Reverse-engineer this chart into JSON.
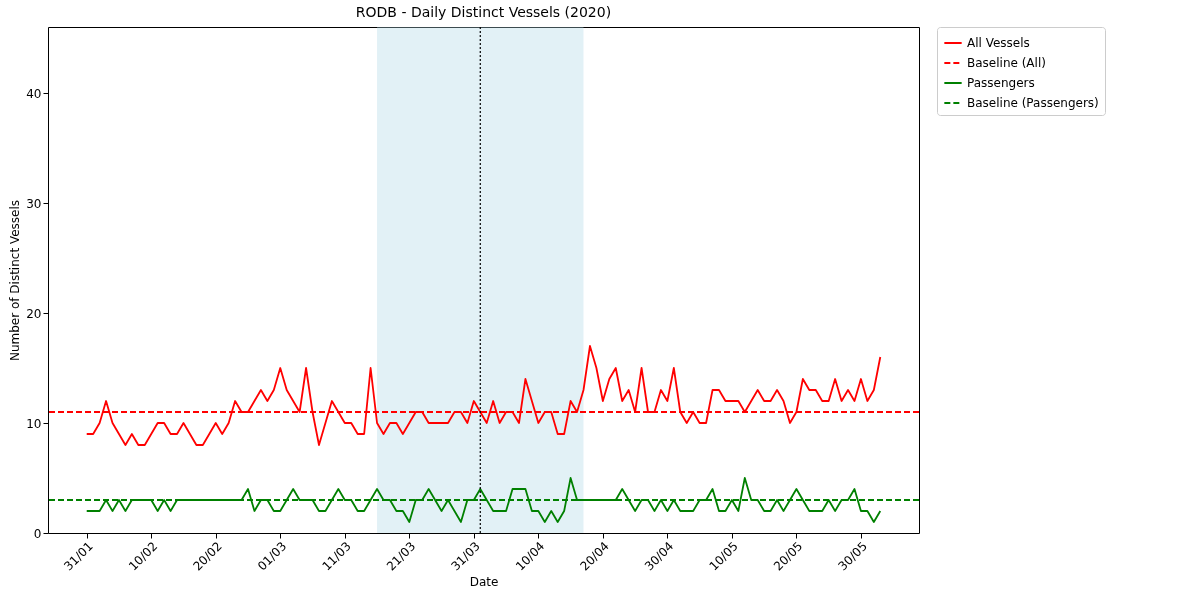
{
  "chart_data": {
    "type": "line",
    "title": "RODB - Daily Distinct Vessels (2020)",
    "xlabel": "Date",
    "ylabel": "Number of Distinct Vessels",
    "x": [
      "2020-01-31",
      "2020-02-01",
      "2020-02-02",
      "2020-02-03",
      "2020-02-04",
      "2020-02-05",
      "2020-02-06",
      "2020-02-07",
      "2020-02-08",
      "2020-02-09",
      "2020-02-10",
      "2020-02-11",
      "2020-02-12",
      "2020-02-13",
      "2020-02-14",
      "2020-02-15",
      "2020-02-16",
      "2020-02-17",
      "2020-02-18",
      "2020-02-19",
      "2020-02-20",
      "2020-02-21",
      "2020-02-22",
      "2020-02-23",
      "2020-02-24",
      "2020-02-25",
      "2020-02-26",
      "2020-02-27",
      "2020-02-28",
      "2020-02-29",
      "2020-03-01",
      "2020-03-02",
      "2020-03-03",
      "2020-03-04",
      "2020-03-05",
      "2020-03-06",
      "2020-03-07",
      "2020-03-08",
      "2020-03-09",
      "2020-03-10",
      "2020-03-11",
      "2020-03-12",
      "2020-03-13",
      "2020-03-14",
      "2020-03-15",
      "2020-03-16",
      "2020-03-17",
      "2020-03-18",
      "2020-03-19",
      "2020-03-20",
      "2020-03-21",
      "2020-03-22",
      "2020-03-23",
      "2020-03-24",
      "2020-03-25",
      "2020-03-26",
      "2020-03-27",
      "2020-03-28",
      "2020-03-29",
      "2020-03-30",
      "2020-03-31",
      "2020-04-01",
      "2020-04-02",
      "2020-04-03",
      "2020-04-04",
      "2020-04-05",
      "2020-04-06",
      "2020-04-07",
      "2020-04-08",
      "2020-04-09",
      "2020-04-10",
      "2020-04-11",
      "2020-04-12",
      "2020-04-13",
      "2020-04-14",
      "2020-04-15",
      "2020-04-16",
      "2020-04-17",
      "2020-04-18",
      "2020-04-19",
      "2020-04-20",
      "2020-04-21",
      "2020-04-22",
      "2020-04-23",
      "2020-04-24",
      "2020-04-25",
      "2020-04-26",
      "2020-04-27",
      "2020-04-28",
      "2020-04-29",
      "2020-04-30",
      "2020-05-01",
      "2020-05-02",
      "2020-05-03",
      "2020-05-04",
      "2020-05-05",
      "2020-05-06",
      "2020-05-07",
      "2020-05-08",
      "2020-05-09",
      "2020-05-10",
      "2020-05-11",
      "2020-05-12",
      "2020-05-13",
      "2020-05-14",
      "2020-05-15",
      "2020-05-16",
      "2020-05-17",
      "2020-05-18",
      "2020-05-19",
      "2020-05-20",
      "2020-05-21",
      "2020-05-22",
      "2020-05-23",
      "2020-05-24",
      "2020-05-25",
      "2020-05-26",
      "2020-05-27",
      "2020-05-28",
      "2020-05-29",
      "2020-05-30",
      "2020-05-31",
      "2020-06-01",
      "2020-06-02"
    ],
    "series": [
      {
        "name": "All Vessels",
        "color": "#ff0000",
        "line_style": "solid",
        "values": [
          9,
          9,
          10,
          12,
          10,
          9,
          8,
          9,
          8,
          8,
          9,
          10,
          10,
          9,
          9,
          10,
          9,
          8,
          8,
          9,
          10,
          9,
          10,
          12,
          11,
          11,
          12,
          13,
          12,
          13,
          15,
          13,
          12,
          11,
          15,
          11,
          8,
          10,
          12,
          11,
          10,
          10,
          9,
          9,
          15,
          10,
          9,
          10,
          10,
          9,
          10,
          11,
          11,
          10,
          10,
          10,
          10,
          11,
          11,
          10,
          12,
          11,
          10,
          12,
          10,
          11,
          11,
          10,
          14,
          12,
          10,
          11,
          11,
          9,
          9,
          12,
          11,
          13,
          17,
          15,
          12,
          14,
          15,
          12,
          13,
          11,
          15,
          11,
          11,
          13,
          12,
          15,
          11,
          10,
          11,
          10,
          10,
          13,
          13,
          12,
          12,
          12,
          11,
          12,
          13,
          12,
          12,
          13,
          12,
          10,
          11,
          14,
          13,
          13,
          12,
          12,
          14,
          12,
          13,
          12,
          14,
          12,
          13,
          16
        ]
      },
      {
        "name": "Passengers",
        "color": "#008000",
        "line_style": "solid",
        "values": [
          2,
          2,
          2,
          3,
          2,
          3,
          2,
          3,
          3,
          3,
          3,
          2,
          3,
          2,
          3,
          3,
          3,
          3,
          3,
          3,
          3,
          3,
          3,
          3,
          3,
          4,
          2,
          3,
          3,
          2,
          2,
          3,
          4,
          3,
          3,
          3,
          2,
          2,
          3,
          4,
          3,
          3,
          2,
          2,
          3,
          4,
          3,
          3,
          2,
          2,
          1,
          3,
          3,
          4,
          3,
          2,
          3,
          2,
          1,
          3,
          3,
          4,
          3,
          2,
          2,
          2,
          4,
          4,
          4,
          2,
          2,
          1,
          2,
          1,
          2,
          5,
          3,
          3,
          3,
          3,
          3,
          3,
          3,
          4,
          3,
          2,
          3,
          3,
          2,
          3,
          2,
          3,
          2,
          2,
          2,
          3,
          3,
          4,
          2,
          2,
          3,
          2,
          5,
          3,
          3,
          2,
          2,
          3,
          2,
          3,
          4,
          3,
          2,
          2,
          2,
          3,
          2,
          3,
          3,
          4,
          2,
          2,
          1,
          2
        ]
      }
    ],
    "ref_lines": [
      {
        "axis": "y",
        "value": 11,
        "label": "Baseline (All)",
        "color": "#ff0000",
        "line_style": "dashed"
      },
      {
        "axis": "y",
        "value": 3,
        "label": "Baseline (Passengers)",
        "color": "#008000",
        "line_style": "dashed"
      },
      {
        "axis": "x",
        "value": "2020-04-01",
        "label": null,
        "color": "#000000",
        "line_style": "dotted"
      }
    ],
    "bands": [
      {
        "axis": "x",
        "from": "2020-03-16",
        "to": "2020-04-17",
        "label": null,
        "color": "#add8e6"
      }
    ],
    "xlim": [
      "2020-01-25",
      "2020-06-08"
    ],
    "xticks": [
      {
        "value": "2020-01-31",
        "label": "31/01"
      },
      {
        "value": "2020-02-10",
        "label": "10/02"
      },
      {
        "value": "2020-02-20",
        "label": "20/02"
      },
      {
        "value": "2020-03-01",
        "label": "01/03"
      },
      {
        "value": "2020-03-11",
        "label": "11/03"
      },
      {
        "value": "2020-03-21",
        "label": "21/03"
      },
      {
        "value": "2020-03-31",
        "label": "31/03"
      },
      {
        "value": "2020-04-10",
        "label": "10/04"
      },
      {
        "value": "2020-04-20",
        "label": "20/04"
      },
      {
        "value": "2020-04-30",
        "label": "30/04"
      },
      {
        "value": "2020-05-10",
        "label": "10/05"
      },
      {
        "value": "2020-05-20",
        "label": "20/05"
      },
      {
        "value": "2020-05-30",
        "label": "30/05"
      }
    ],
    "ylim": [
      0,
      46
    ],
    "yticks": [
      0,
      10,
      20,
      30,
      40
    ],
    "grid": false,
    "legend": "right",
    "marker": "none"
  }
}
